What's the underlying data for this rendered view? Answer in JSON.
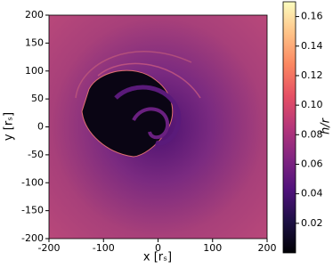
{
  "chart_data": {
    "type": "heatmap",
    "colormap": "magma",
    "xlabel": "x [rₛ]",
    "ylabel": "y [rₛ]",
    "xlim": [
      -200,
      200
    ],
    "ylim": [
      -200,
      200
    ],
    "xticks": [
      -200,
      -100,
      0,
      100,
      200
    ],
    "yticks": [
      -200,
      -150,
      -100,
      -50,
      0,
      50,
      100,
      150,
      200
    ],
    "colorbar": {
      "label": "h/r",
      "lim": [
        0,
        0.17
      ],
      "ticks": [
        0.02,
        0.04,
        0.06,
        0.08,
        {
          "value": 0.1,
          "label": "0.10"
        },
        0.12,
        0.14,
        0.16
      ]
    }
  }
}
